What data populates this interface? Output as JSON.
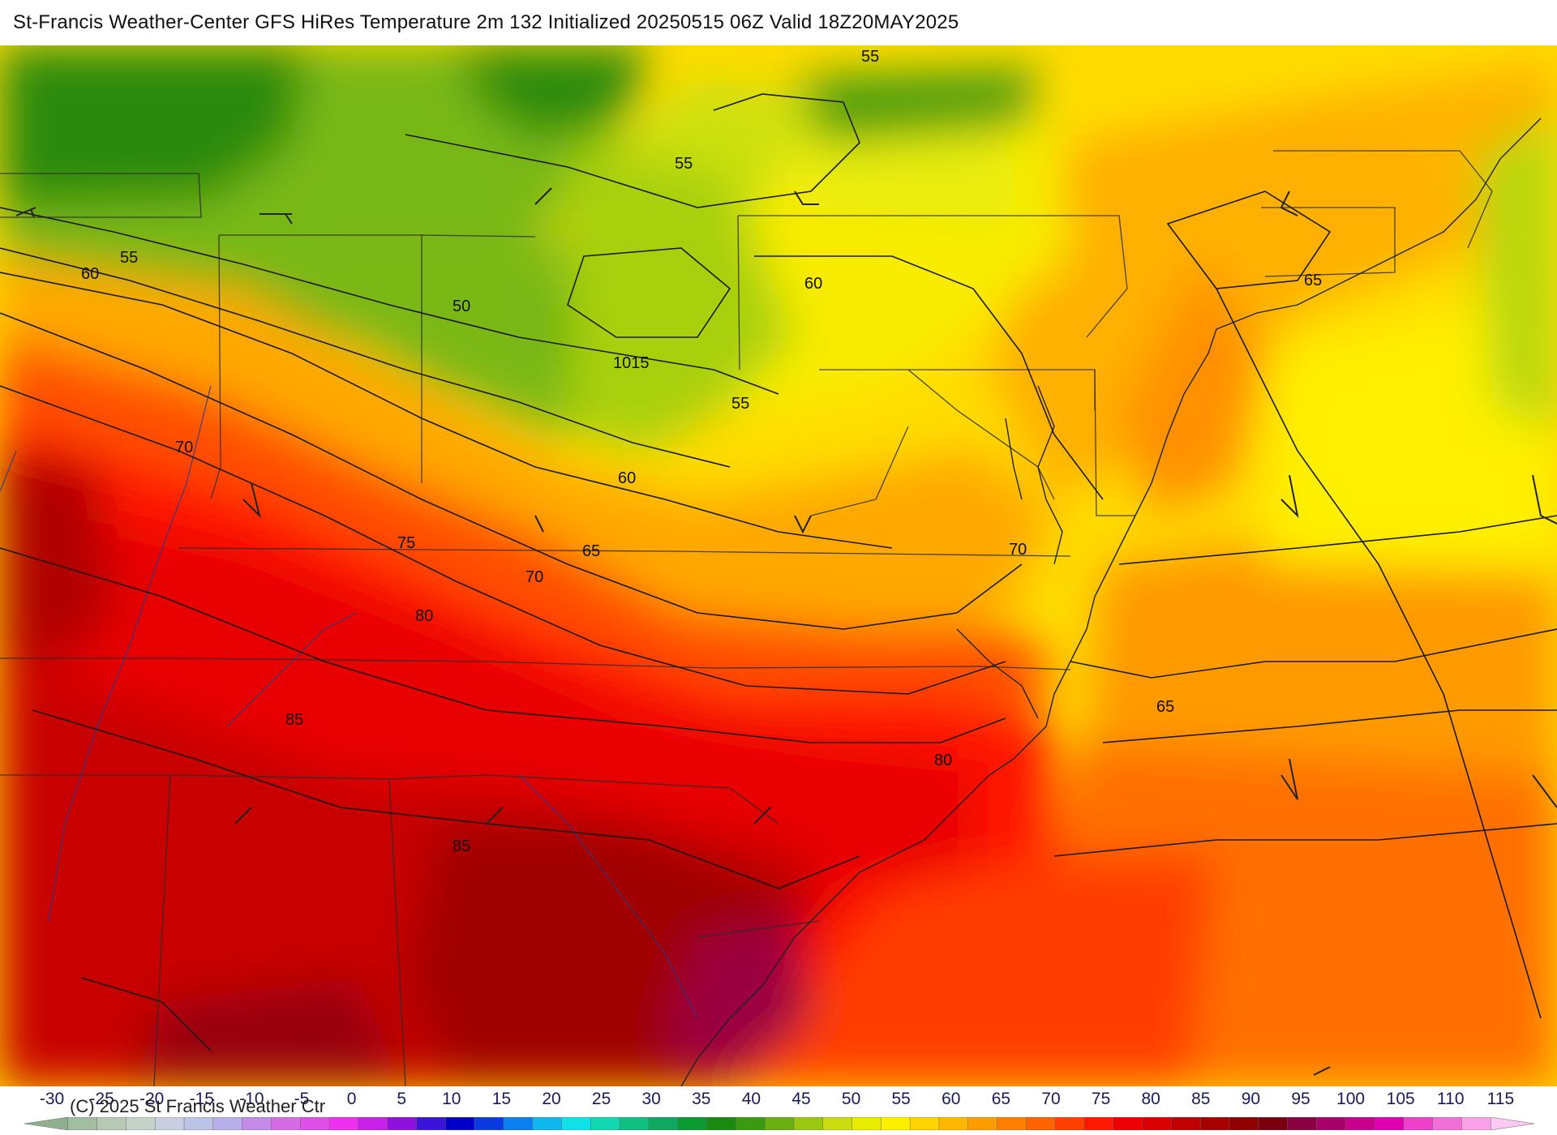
{
  "header": {
    "title": "St-Francis Weather-Center GFS HiRes Temperature 2m  132 Initialized 20250515 06Z Valid 18Z20MAY2025"
  },
  "map": {
    "contour_labels": [
      {
        "id": "c55a",
        "text": "55"
      },
      {
        "id": "c55b",
        "text": "55"
      },
      {
        "id": "c55c",
        "text": "55"
      },
      {
        "id": "c55d",
        "text": "55"
      },
      {
        "id": "c60a",
        "text": "60"
      },
      {
        "id": "c60b",
        "text": "60"
      },
      {
        "id": "c60c",
        "text": "60"
      },
      {
        "id": "c50",
        "text": "50"
      },
      {
        "id": "c1015",
        "text": "1015"
      },
      {
        "id": "c65a",
        "text": "65"
      },
      {
        "id": "c65b",
        "text": "65"
      },
      {
        "id": "c65c",
        "text": "65"
      },
      {
        "id": "c70a",
        "text": "70"
      },
      {
        "id": "c70b",
        "text": "70"
      },
      {
        "id": "c70c",
        "text": "70"
      },
      {
        "id": "c75",
        "text": "75"
      },
      {
        "id": "c80a",
        "text": "80"
      },
      {
        "id": "c80b",
        "text": "80"
      },
      {
        "id": "c85a",
        "text": "85"
      },
      {
        "id": "c85b",
        "text": "85"
      }
    ]
  },
  "colorbar": {
    "credit": "(C) 2025 St Francis Weather Ctr",
    "ticks": [
      "-30",
      "-25",
      "-20",
      "-15",
      "-10",
      "-5",
      "0",
      "5",
      "10",
      "15",
      "20",
      "25",
      "30",
      "35",
      "40",
      "45",
      "50",
      "55",
      "60",
      "65",
      "70",
      "75",
      "80",
      "85",
      "90",
      "95",
      "100",
      "105",
      "110",
      "115"
    ],
    "colors": [
      "#8fb08f",
      "#a2bda2",
      "#b5c9b5",
      "#c4d2c8",
      "#c9cfe0",
      "#bcc4e6",
      "#b7b0ea",
      "#c58be8",
      "#d66be6",
      "#e050e8",
      "#ee30f0",
      "#c820e8",
      "#9010e0",
      "#3a14d8",
      "#0000c8",
      "#0a3ae0",
      "#0a80f0",
      "#10b8f0",
      "#10e0e8",
      "#10d8b0",
      "#10c080",
      "#10a860",
      "#0a9a30",
      "#1a8a10",
      "#3a9a10",
      "#6ab010",
      "#9ac810",
      "#c8dc10",
      "#e8ec00",
      "#fff000",
      "#ffd400",
      "#ffb800",
      "#ff9c00",
      "#ff8000",
      "#ff6400",
      "#ff4000",
      "#ff1800",
      "#ee0000",
      "#d80000",
      "#c00000",
      "#a80000",
      "#900000",
      "#7a0010",
      "#8a0040",
      "#a8006a",
      "#c8008c",
      "#e000b0",
      "#ee40c8",
      "#f070d8",
      "#f8a0e8",
      "#fcc8f4"
    ]
  }
}
